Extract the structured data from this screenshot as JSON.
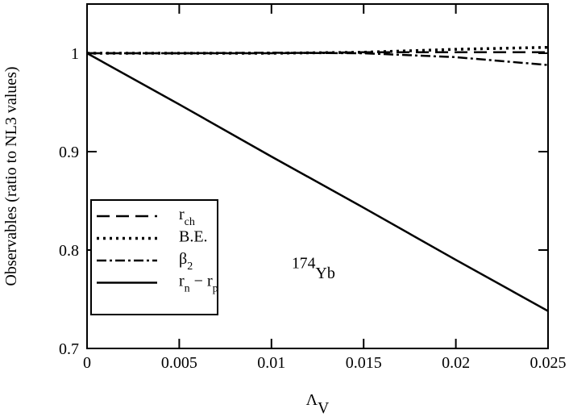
{
  "chart_data": {
    "type": "line",
    "x_label": [
      {
        "text": "Λ"
      },
      {
        "text": "V",
        "sub": true
      }
    ],
    "y_label": "Observables  (ratio to NL3 values)",
    "annotation": [
      {
        "text": "174",
        "sup": true
      },
      {
        "text": "Yb"
      }
    ],
    "x": [
      0,
      0.005,
      0.01,
      0.015,
      0.02,
      0.025
    ],
    "series": [
      {
        "name": [
          {
            "text": "r"
          },
          {
            "text": "ch",
            "sub": true
          }
        ],
        "color": "#000000",
        "linestyle": "dashed",
        "values": [
          1,
          1,
          1,
          1.001,
          1.001,
          1.001
        ]
      },
      {
        "name": [
          {
            "text": "B.E."
          }
        ],
        "color": "#000000",
        "linestyle": "dotted",
        "values": [
          1,
          1,
          1,
          1.001,
          1.004,
          1.006
        ]
      },
      {
        "name": [
          {
            "text": "β"
          },
          {
            "text": "2",
            "sub": true
          }
        ],
        "color": "#000000",
        "linestyle": "dashdot",
        "values": [
          1,
          1,
          1.0005,
          1.0,
          0.996,
          0.988
        ]
      },
      {
        "name": [
          {
            "text": "r"
          },
          {
            "text": "n",
            "sub": true
          },
          {
            "text": " − r"
          },
          {
            "text": "p",
            "sub": true
          }
        ],
        "color": "#000000",
        "linestyle": "solid",
        "values": [
          1,
          0.948,
          0.895,
          0.843,
          0.79,
          0.738
        ]
      }
    ],
    "xlim": [
      0,
      0.025
    ],
    "xticks": [
      0,
      0.005,
      0.01,
      0.015,
      0.02,
      0.025
    ],
    "ylim": [
      0.7,
      1.05
    ],
    "yticks": [
      0.7,
      0.8,
      0.9,
      1
    ],
    "legend": "lower left",
    "grid": false
  }
}
